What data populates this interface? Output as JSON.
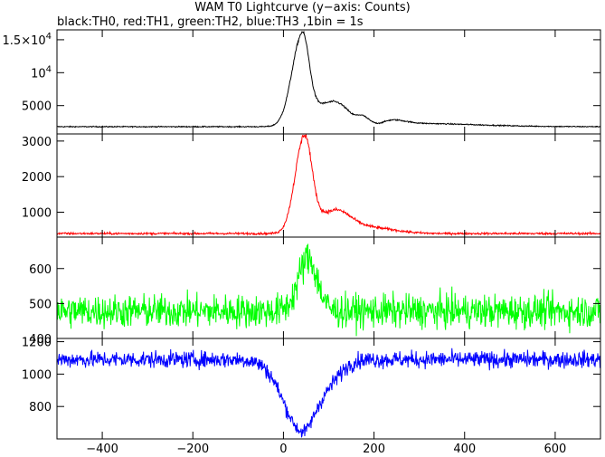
{
  "title": "WAM T0 Lightcurve (y−axis: Counts)",
  "subtitle": "black:TH0, red:TH1, green:TH2, blue:TH3 ,1bin = 1s",
  "chart_data": {
    "type": "line",
    "x_range": [
      -500,
      700
    ],
    "x_ticks": [
      -400,
      -200,
      0,
      200,
      400,
      600
    ],
    "x_tick_labels": [
      "−400",
      "−200",
      "0",
      "200",
      "400",
      "600"
    ],
    "panels": [
      {
        "name": "TH0",
        "color": "#000000",
        "ylim": [
          700,
          16500
        ],
        "y_ticks": [
          5000,
          10000,
          15000
        ],
        "y_tick_labels": [
          {
            "base": "5000"
          },
          {
            "base": "10",
            "sup": "4"
          },
          {
            "base": "1.5×10",
            "sup": "4"
          }
        ],
        "baseline": 1800,
        "noise": 40,
        "peaks": [
          {
            "x": 40,
            "amp": 13300,
            "wl": 22,
            "wr": 15
          },
          {
            "x": 60,
            "amp": 2600,
            "wl": 14,
            "wr": 34
          },
          {
            "x": 120,
            "amp": 3100,
            "wl": 28,
            "wr": 28
          },
          {
            "x": 175,
            "amp": 1100,
            "wl": 12,
            "wr": 15
          },
          {
            "x": 240,
            "amp": 600,
            "wl": 18,
            "wr": 28
          },
          {
            "x": 280,
            "amp": 500,
            "wl": 70,
            "wr": 140
          }
        ]
      },
      {
        "name": "TH1",
        "color": "#ff0000",
        "ylim": [
          300,
          3200
        ],
        "y_ticks": [
          1000,
          2000,
          3000
        ],
        "y_tick_labels": [
          {
            "base": "1000"
          },
          {
            "base": "2000"
          },
          {
            "base": "3000"
          }
        ],
        "baseline": 400,
        "noise": 15,
        "peaks": [
          {
            "x": 45,
            "amp": 2600,
            "wl": 20,
            "wr": 16
          },
          {
            "x": 65,
            "amp": 450,
            "wl": 14,
            "wr": 34
          },
          {
            "x": 125,
            "amp": 550,
            "wl": 26,
            "wr": 32
          },
          {
            "x": 200,
            "amp": 150,
            "wl": 30,
            "wr": 50
          }
        ]
      },
      {
        "name": "TH2",
        "color": "#00ff00",
        "ylim": [
          400,
          690
        ],
        "y_ticks": [
          400,
          500,
          600
        ],
        "y_tick_labels": [
          {
            "base": "400"
          },
          {
            "base": "500"
          },
          {
            "base": "600"
          }
        ],
        "baseline": 478,
        "noise": 24,
        "peaks": [
          {
            "x": 55,
            "amp": 150,
            "wl": 22,
            "wr": 20
          }
        ]
      },
      {
        "name": "TH3",
        "color": "#0000ff",
        "ylim": [
          600,
          1220
        ],
        "y_ticks": [
          800,
          1000,
          1200
        ],
        "y_tick_labels": [
          {
            "base": "800"
          },
          {
            "base": "1000"
          },
          {
            "base": "1200"
          }
        ],
        "baseline": 1090,
        "noise": 26,
        "peaks": [
          {
            "x": 40,
            "amp": -430,
            "wl": 40,
            "wr": 28
          },
          {
            "x": 95,
            "amp": -140,
            "wl": 26,
            "wr": 30
          }
        ]
      }
    ]
  }
}
